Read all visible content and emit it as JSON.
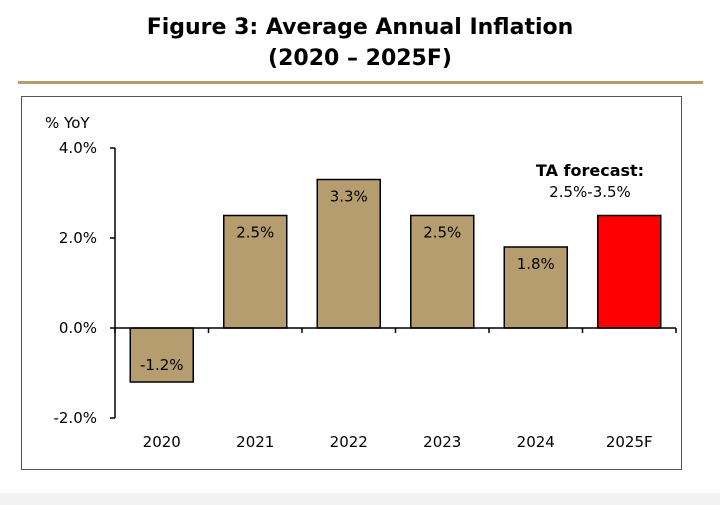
{
  "figure": {
    "title_line1": "Figure 3: Average Annual Inflation",
    "title_line2": "(2020 – 2025F)"
  },
  "chart_data": {
    "type": "bar",
    "title": "Figure 3: Average Annual Inflation (2020 – 2025F)",
    "ylabel": "% YoY",
    "xlabel": "",
    "categories": [
      "2020",
      "2021",
      "2022",
      "2023",
      "2024",
      "2025F"
    ],
    "values": [
      -1.2,
      2.5,
      3.3,
      2.5,
      1.8,
      2.5
    ],
    "data_labels": [
      "-1.2%",
      "2.5%",
      "3.3%",
      "2.5%",
      "1.8%",
      ""
    ],
    "ylim": [
      -2.0,
      4.0
    ],
    "yticks": [
      4.0,
      2.0,
      0.0,
      -2.0
    ],
    "ytick_labels": [
      "4.0%",
      "2.0%",
      "0.0%",
      "-2.0%"
    ],
    "grid": false,
    "colors": {
      "bar": "#b59d6f",
      "forecast_bar": "#ff0000",
      "outline": "#000000"
    },
    "forecast_index": 5,
    "annotation": {
      "line1": "TA forecast:",
      "line2": "2.5%-3.5%"
    }
  }
}
